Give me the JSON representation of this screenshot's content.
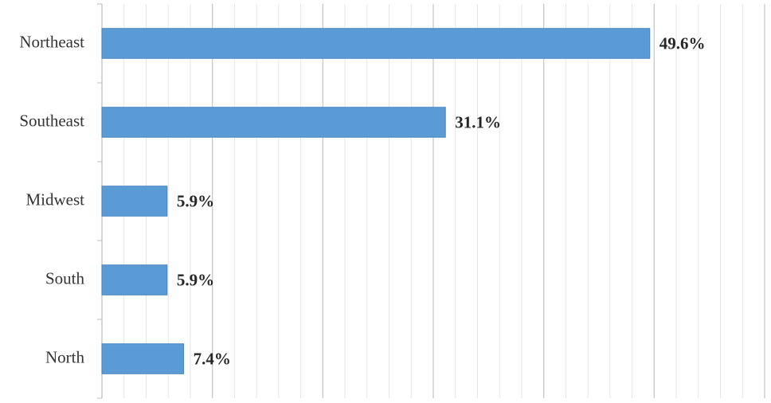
{
  "chart_data": {
    "type": "hbar",
    "categories": [
      "Northeast",
      "Southeast",
      "Midwest",
      "South",
      "North"
    ],
    "values": [
      49.6,
      31.1,
      5.9,
      5.9,
      7.4
    ],
    "value_labels": [
      "49.6%",
      "31.1%",
      "5.9%",
      "5.9%",
      "7.4%"
    ],
    "color": "#5b9bd5",
    "xlim": [
      0,
      60
    ],
    "xticks": [
      0,
      10,
      20,
      30,
      40,
      50,
      60
    ],
    "minor_xticks": [
      2,
      4,
      6,
      8,
      12,
      14,
      16,
      18,
      22,
      24,
      26,
      28,
      32,
      34,
      36,
      38,
      42,
      44,
      46,
      48,
      52,
      54,
      56,
      58
    ],
    "grid": true
  }
}
